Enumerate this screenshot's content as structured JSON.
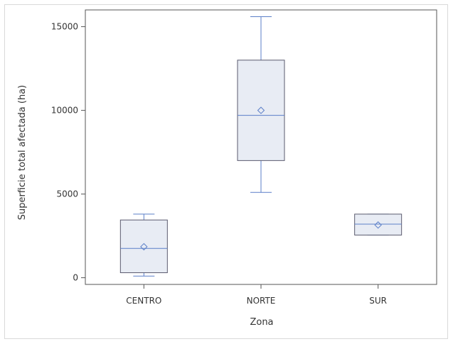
{
  "chart_data": {
    "type": "boxplot",
    "xlabel": "Zona",
    "ylabel": "Superficie total afectada (ha)",
    "ylim": [
      -400,
      16000
    ],
    "yticks": [
      0,
      5000,
      10000,
      15000
    ],
    "categories": [
      "CENTRO",
      "NORTE",
      "SUR"
    ],
    "boxes": [
      {
        "category": "CENTRO",
        "min": 100,
        "q1": 300,
        "median": 1750,
        "mean": 1850,
        "q3": 3450,
        "max": 3800
      },
      {
        "category": "NORTE",
        "min": 5100,
        "q1": 7000,
        "median": 9700,
        "mean": 10000,
        "q3": 13000,
        "max": 15600
      },
      {
        "category": "SUR",
        "min": 2550,
        "q1": 2550,
        "median": 3200,
        "mean": 3150,
        "q3": 3800,
        "max": 3800
      }
    ],
    "grid": false,
    "colors": {
      "box_fill": "#e8ecf4",
      "box_stroke": "#5a5a6e",
      "whisker": "#5b7fc8",
      "axis": "#555555"
    }
  }
}
